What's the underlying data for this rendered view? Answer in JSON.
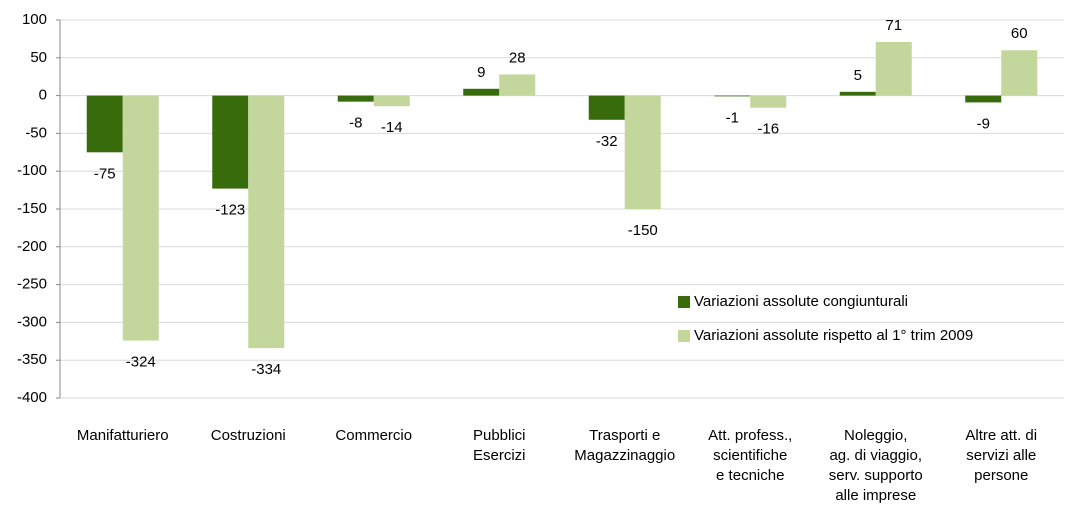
{
  "chart_data": {
    "type": "bar",
    "categories": [
      "Manifatturiero",
      "Costruzioni",
      "Commercio",
      "Pubblici\nEsercizi",
      "Trasporti e\nMagazzinaggio",
      "Att. profess.,\nscientifiche\ne tecniche",
      "Noleggio,\nag. di viaggio,\nserv. supporto\nalle imprese",
      "Altre att. di\nservizi alle\npersone"
    ],
    "series": [
      {
        "name": "Variazioni assolute congiunturali",
        "color": "#376b0c",
        "values": [
          -75,
          -123,
          -8,
          9,
          -32,
          -1,
          5,
          -9
        ]
      },
      {
        "name": "Variazioni assolute rispetto al 1° trim 2009",
        "color": "#c3d69b",
        "values": [
          -324,
          -334,
          -14,
          28,
          -150,
          -16,
          71,
          60
        ]
      }
    ],
    "ylim": [
      -400,
      100
    ],
    "yticks": [
      -400,
      -350,
      -300,
      -250,
      -200,
      -150,
      -100,
      -50,
      0,
      50,
      100
    ],
    "grid": true,
    "legend": "right"
  }
}
